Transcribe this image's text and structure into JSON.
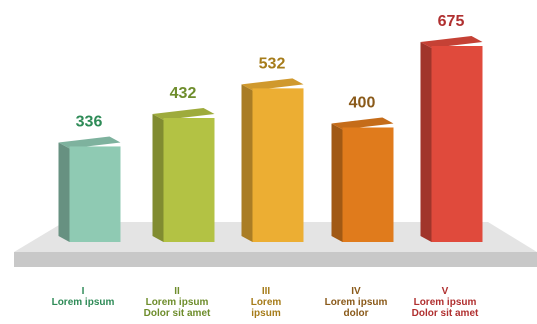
{
  "chart_data": {
    "type": "bar",
    "style": "3d-columns-on-platform",
    "categories": [
      "I",
      "II",
      "III",
      "IV",
      "V"
    ],
    "category_sublabels": [
      [
        "Lorem ipsum"
      ],
      [
        "Lorem ipsum",
        "Dolor sit amet"
      ],
      [
        "Lorem",
        "ipsum"
      ],
      [
        "Lorem ipsum",
        "dolor"
      ],
      [
        "Lorem ipsum",
        "Dolor sit amet"
      ]
    ],
    "values": [
      336,
      432,
      532,
      400,
      675
    ],
    "value_labels": [
      "336",
      "432",
      "532",
      "400",
      "675"
    ],
    "colors": [
      "#8fcab3",
      "#b3c244",
      "#ecae33",
      "#e07b1c",
      "#e04a3c"
    ],
    "label_colors": [
      "#2e8b57",
      "#6e8d2c",
      "#a67c1a",
      "#8a5a1a",
      "#b03030"
    ],
    "title": "",
    "xlabel": "",
    "ylabel": "",
    "ylim": [
      0,
      750
    ],
    "grid": false,
    "legend": "none"
  }
}
